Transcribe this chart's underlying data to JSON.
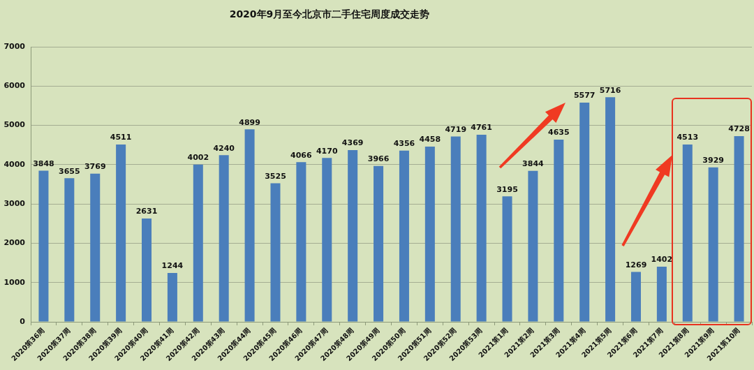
{
  "chart_data": {
    "type": "bar",
    "title": "2020年9月至今北京市二手住宅周度成交走势",
    "categories": [
      "2020第36周",
      "2020第37周",
      "2020第38周",
      "2020第39周",
      "2020第40周",
      "2020第41周",
      "2020第42周",
      "2020第43周",
      "2020第44周",
      "2020第45周",
      "2020第46周",
      "2020第47周",
      "2020第48周",
      "2020第49周",
      "2020第50周",
      "2020第51周",
      "2020第52周",
      "2020第53周",
      "2021第1周",
      "2021第2周",
      "2021第3周",
      "2021第4周",
      "2021第5周",
      "2021第6周",
      "2021第7周",
      "2021第8周",
      "2021第9周",
      "2021第10周"
    ],
    "values": [
      3848,
      3655,
      3769,
      4511,
      2631,
      1244,
      4002,
      4240,
      4899,
      3525,
      4066,
      4170,
      4369,
      3966,
      4356,
      4458,
      4719,
      4761,
      3195,
      3844,
      4635,
      5577,
      5716,
      1269,
      1402,
      4513,
      3929,
      4728
    ],
    "color": "#4a7ebb",
    "ylim": [
      0,
      7000
    ],
    "yticks": [
      0,
      1000,
      2000,
      3000,
      4000,
      5000,
      6000,
      7000
    ],
    "grid": "y",
    "data_labels": true
  }
}
